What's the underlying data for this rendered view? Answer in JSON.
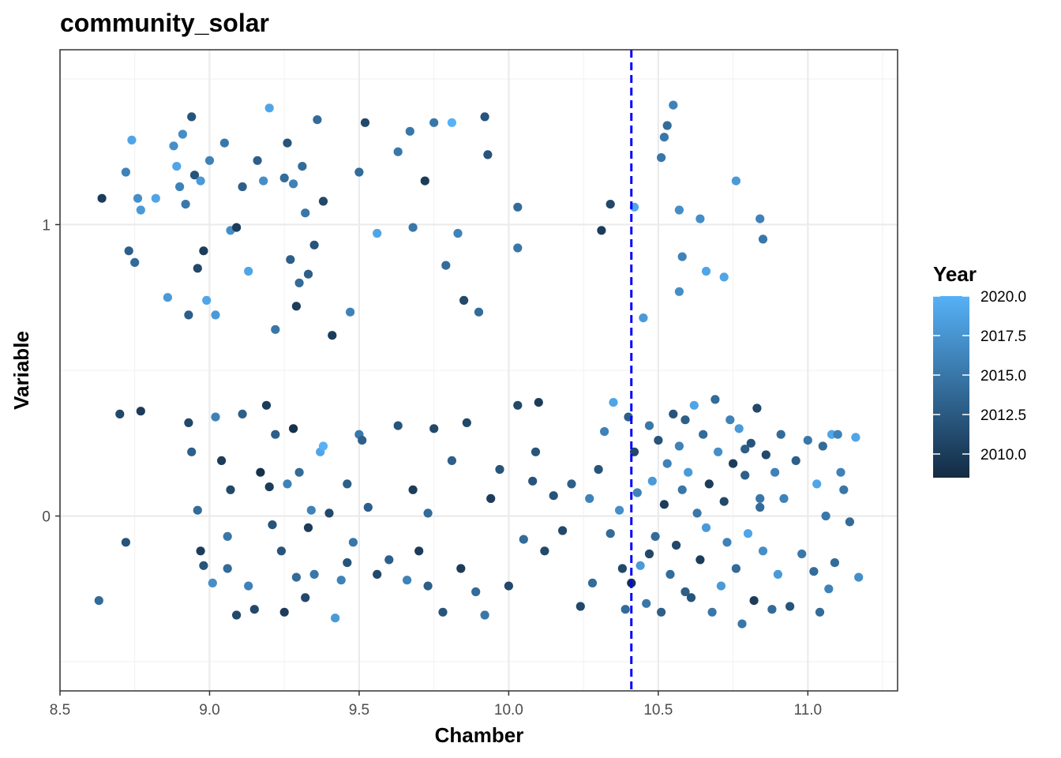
{
  "chart_data": {
    "type": "scatter",
    "title": "community_solar",
    "xlabel": "Chamber",
    "ylabel": "Variable",
    "xlim": [
      8.5,
      11.3
    ],
    "ylim": [
      -0.6,
      1.6
    ],
    "x_ticks": [
      8.5,
      9.0,
      9.5,
      10.0,
      10.5,
      11.0
    ],
    "x_tick_labels": [
      "8.5",
      "9.0",
      "9.5",
      "10.0",
      "10.5",
      "11.0"
    ],
    "y_ticks": [
      0,
      1
    ],
    "y_tick_labels": [
      "0",
      "1"
    ],
    "grid": true,
    "reference_line": {
      "x": 10.41,
      "color": "#0000ff",
      "style": "dashed"
    },
    "legend": {
      "title": "Year",
      "position": "right",
      "min": 2008.5,
      "max": 2020.0,
      "ticks": [
        2020.0,
        2017.5,
        2015.0,
        2012.5,
        2010.0
      ],
      "tick_labels": [
        "2020.0",
        "2017.5",
        "2015.0",
        "2012.5",
        "2010.0"
      ],
      "color_low": "#132b43",
      "color_high": "#56b1f7"
    },
    "groups": [
      {
        "y": 1,
        "points": [
          [
            8.64,
            1.09,
            2010
          ],
          [
            8.72,
            1.18,
            2016
          ],
          [
            8.73,
            0.91,
            2013
          ],
          [
            8.74,
            1.29,
            2019
          ],
          [
            8.75,
            0.87,
            2014
          ],
          [
            8.76,
            1.09,
            2017
          ],
          [
            8.77,
            1.05,
            2018
          ],
          [
            8.82,
            1.09,
            2019
          ],
          [
            8.86,
            0.75,
            2018
          ],
          [
            8.88,
            1.27,
            2017
          ],
          [
            8.89,
            1.2,
            2019
          ],
          [
            8.9,
            1.13,
            2016
          ],
          [
            8.91,
            1.31,
            2017
          ],
          [
            8.92,
            1.07,
            2015
          ],
          [
            8.93,
            0.69,
            2013
          ],
          [
            8.94,
            1.37,
            2012
          ],
          [
            8.95,
            1.17,
            2012
          ],
          [
            8.96,
            0.85,
            2011
          ],
          [
            8.97,
            1.15,
            2018
          ],
          [
            8.98,
            0.91,
            2010
          ],
          [
            8.99,
            0.74,
            2019
          ],
          [
            9.0,
            1.22,
            2016
          ],
          [
            9.02,
            0.69,
            2018
          ],
          [
            9.05,
            1.28,
            2015
          ],
          [
            9.07,
            0.98,
            2017
          ],
          [
            9.09,
            0.99,
            2010
          ],
          [
            9.11,
            1.13,
            2013
          ],
          [
            9.13,
            0.84,
            2019
          ],
          [
            9.16,
            1.22,
            2013
          ],
          [
            9.18,
            1.15,
            2017
          ],
          [
            9.2,
            1.4,
            2019
          ],
          [
            9.25,
            1.16,
            2014
          ],
          [
            9.26,
            1.28,
            2012
          ],
          [
            9.27,
            0.88,
            2013
          ],
          [
            9.28,
            1.14,
            2016
          ],
          [
            9.29,
            0.72,
            2010
          ],
          [
            9.3,
            0.8,
            2014
          ],
          [
            9.31,
            1.2,
            2014
          ],
          [
            9.32,
            1.04,
            2015
          ],
          [
            9.33,
            0.83,
            2013
          ],
          [
            9.35,
            0.93,
            2012
          ],
          [
            9.36,
            1.36,
            2014
          ],
          [
            9.38,
            1.08,
            2011
          ],
          [
            9.41,
            0.62,
            2010
          ],
          [
            9.47,
            0.7,
            2016
          ],
          [
            9.5,
            1.18,
            2014
          ],
          [
            9.52,
            1.35,
            2011
          ],
          [
            9.56,
            0.97,
            2019
          ],
          [
            9.63,
            1.25,
            2015
          ],
          [
            9.67,
            1.32,
            2015
          ],
          [
            9.68,
            0.99,
            2015
          ],
          [
            9.72,
            1.15,
            2010
          ],
          [
            9.75,
            1.35,
            2015
          ],
          [
            9.79,
            0.86,
            2014
          ],
          [
            9.81,
            1.35,
            2020
          ],
          [
            9.83,
            0.97,
            2016
          ],
          [
            9.85,
            0.74,
            2011
          ],
          [
            9.9,
            0.7,
            2014
          ],
          [
            9.92,
            1.37,
            2012
          ],
          [
            9.93,
            1.24,
            2012
          ],
          [
            10.03,
            1.06,
            2014
          ],
          [
            10.03,
            0.92,
            2015
          ],
          [
            10.31,
            0.98,
            2010
          ],
          [
            10.34,
            1.07,
            2011
          ],
          [
            10.42,
            1.06,
            2019
          ],
          [
            10.51,
            1.23,
            2015
          ],
          [
            10.52,
            1.3,
            2015
          ],
          [
            10.53,
            1.34,
            2014
          ],
          [
            10.55,
            1.41,
            2016
          ],
          [
            10.57,
            1.05,
            2017
          ],
          [
            10.58,
            0.89,
            2016
          ],
          [
            10.64,
            1.02,
            2017
          ],
          [
            10.66,
            0.84,
            2019
          ],
          [
            10.72,
            0.82,
            2019
          ],
          [
            10.76,
            1.15,
            2018
          ],
          [
            10.84,
            1.02,
            2016
          ],
          [
            10.85,
            0.95,
            2015
          ],
          [
            10.57,
            0.77,
            2017
          ],
          [
            10.45,
            0.68,
            2018
          ],
          [
            9.22,
            0.64,
            2015
          ]
        ]
      },
      {
        "y": 0,
        "points": [
          [
            8.63,
            -0.29,
            2014
          ],
          [
            8.7,
            0.35,
            2011
          ],
          [
            8.72,
            -0.09,
            2012
          ],
          [
            8.77,
            0.36,
            2010
          ],
          [
            8.93,
            0.32,
            2011
          ],
          [
            8.94,
            0.22,
            2013
          ],
          [
            8.96,
            0.02,
            2014
          ],
          [
            8.97,
            -0.12,
            2010
          ],
          [
            8.98,
            -0.17,
            2012
          ],
          [
            9.01,
            -0.23,
            2017
          ],
          [
            9.02,
            0.34,
            2016
          ],
          [
            9.04,
            0.19,
            2010
          ],
          [
            9.06,
            -0.07,
            2015
          ],
          [
            9.07,
            0.09,
            2011
          ],
          [
            9.09,
            -0.34,
            2011
          ],
          [
            9.11,
            0.35,
            2013
          ],
          [
            9.13,
            -0.24,
            2016
          ],
          [
            9.15,
            -0.32,
            2011
          ],
          [
            9.17,
            0.15,
            2009
          ],
          [
            9.19,
            0.38,
            2010
          ],
          [
            9.21,
            -0.03,
            2012
          ],
          [
            9.22,
            0.28,
            2013
          ],
          [
            9.24,
            -0.12,
            2012
          ],
          [
            9.25,
            -0.33,
            2010
          ],
          [
            9.26,
            0.11,
            2016
          ],
          [
            9.28,
            0.3,
            2009
          ],
          [
            9.29,
            -0.21,
            2014
          ],
          [
            9.3,
            0.15,
            2014
          ],
          [
            9.32,
            -0.28,
            2011
          ],
          [
            9.33,
            -0.04,
            2010
          ],
          [
            9.34,
            0.02,
            2016
          ],
          [
            9.35,
            -0.2,
            2015
          ],
          [
            9.37,
            0.22,
            2019
          ],
          [
            9.38,
            0.24,
            2020
          ],
          [
            9.4,
            0.01,
            2011
          ],
          [
            9.42,
            -0.35,
            2018
          ],
          [
            9.44,
            -0.22,
            2016
          ],
          [
            9.46,
            0.11,
            2013
          ],
          [
            9.48,
            -0.09,
            2015
          ],
          [
            9.5,
            0.28,
            2015
          ],
          [
            9.51,
            0.26,
            2013
          ],
          [
            9.53,
            0.03,
            2013
          ],
          [
            9.56,
            -0.2,
            2011
          ],
          [
            9.6,
            -0.15,
            2013
          ],
          [
            9.63,
            0.31,
            2012
          ],
          [
            9.66,
            -0.22,
            2016
          ],
          [
            9.68,
            0.09,
            2010
          ],
          [
            9.7,
            -0.12,
            2010
          ],
          [
            9.73,
            0.01,
            2014
          ],
          [
            9.75,
            0.3,
            2011
          ],
          [
            9.78,
            -0.33,
            2012
          ],
          [
            9.81,
            0.19,
            2013
          ],
          [
            9.84,
            -0.18,
            2010
          ],
          [
            9.86,
            0.32,
            2011
          ],
          [
            9.89,
            -0.26,
            2014
          ],
          [
            9.92,
            -0.34,
            2015
          ],
          [
            9.94,
            0.06,
            2010
          ],
          [
            9.97,
            0.16,
            2012
          ],
          [
            10.0,
            -0.24,
            2011
          ],
          [
            10.03,
            0.38,
            2011
          ],
          [
            10.05,
            -0.08,
            2014
          ],
          [
            10.08,
            0.12,
            2012
          ],
          [
            10.1,
            0.39,
            2010
          ],
          [
            10.12,
            -0.12,
            2011
          ],
          [
            10.15,
            0.07,
            2012
          ],
          [
            10.18,
            -0.05,
            2011
          ],
          [
            10.21,
            0.11,
            2013
          ],
          [
            10.24,
            -0.31,
            2011
          ],
          [
            10.27,
            0.06,
            2016
          ],
          [
            10.3,
            0.16,
            2012
          ],
          [
            10.32,
            0.29,
            2016
          ],
          [
            10.34,
            -0.06,
            2014
          ],
          [
            10.35,
            0.39,
            2019
          ],
          [
            10.37,
            0.02,
            2017
          ],
          [
            10.38,
            -0.18,
            2011
          ],
          [
            10.39,
            -0.32,
            2014
          ],
          [
            10.4,
            0.34,
            2013
          ],
          [
            10.41,
            -0.23,
            2009
          ],
          [
            10.42,
            0.22,
            2011
          ],
          [
            10.43,
            0.08,
            2016
          ],
          [
            10.44,
            -0.17,
            2018
          ],
          [
            10.46,
            -0.3,
            2015
          ],
          [
            10.47,
            0.31,
            2015
          ],
          [
            10.48,
            0.12,
            2018
          ],
          [
            10.49,
            -0.07,
            2014
          ],
          [
            10.5,
            0.26,
            2012
          ],
          [
            10.51,
            -0.33,
            2013
          ],
          [
            10.52,
            0.04,
            2010
          ],
          [
            10.53,
            0.18,
            2016
          ],
          [
            10.54,
            -0.2,
            2014
          ],
          [
            10.55,
            0.35,
            2012
          ],
          [
            10.56,
            -0.1,
            2011
          ],
          [
            10.57,
            0.24,
            2016
          ],
          [
            10.58,
            0.09,
            2015
          ],
          [
            10.59,
            -0.26,
            2013
          ],
          [
            10.6,
            0.15,
            2018
          ],
          [
            10.61,
            -0.28,
            2012
          ],
          [
            10.62,
            0.38,
            2019
          ],
          [
            10.63,
            0.01,
            2015
          ],
          [
            10.64,
            -0.15,
            2010
          ],
          [
            10.65,
            0.28,
            2014
          ],
          [
            10.66,
            -0.04,
            2018
          ],
          [
            10.67,
            0.11,
            2010
          ],
          [
            10.68,
            -0.33,
            2015
          ],
          [
            10.69,
            0.4,
            2014
          ],
          [
            10.7,
            0.22,
            2017
          ],
          [
            10.71,
            -0.24,
            2018
          ],
          [
            10.72,
            0.05,
            2011
          ],
          [
            10.73,
            -0.09,
            2016
          ],
          [
            10.74,
            0.33,
            2016
          ],
          [
            10.75,
            0.18,
            2010
          ],
          [
            10.76,
            -0.18,
            2014
          ],
          [
            10.77,
            0.3,
            2018
          ],
          [
            10.78,
            -0.37,
            2015
          ],
          [
            10.79,
            0.14,
            2013
          ],
          [
            10.8,
            -0.06,
            2019
          ],
          [
            10.81,
            0.25,
            2012
          ],
          [
            10.82,
            -0.29,
            2010
          ],
          [
            10.83,
            0.37,
            2011
          ],
          [
            10.84,
            0.06,
            2015
          ],
          [
            10.85,
            -0.12,
            2017
          ],
          [
            10.86,
            0.21,
            2011
          ],
          [
            10.88,
            -0.32,
            2014
          ],
          [
            10.89,
            0.15,
            2016
          ],
          [
            10.9,
            -0.2,
            2018
          ],
          [
            10.91,
            0.28,
            2014
          ],
          [
            10.92,
            0.06,
            2016
          ],
          [
            10.94,
            -0.31,
            2012
          ],
          [
            10.96,
            0.19,
            2013
          ],
          [
            10.98,
            -0.13,
            2015
          ],
          [
            11.0,
            0.26,
            2015
          ],
          [
            11.02,
            -0.19,
            2014
          ],
          [
            11.03,
            0.11,
            2019
          ],
          [
            11.04,
            -0.33,
            2014
          ],
          [
            11.05,
            0.24,
            2014
          ],
          [
            11.06,
            0.0,
            2015
          ],
          [
            11.07,
            -0.25,
            2016
          ],
          [
            11.08,
            0.28,
            2019
          ],
          [
            11.09,
            -0.16,
            2014
          ],
          [
            11.1,
            0.28,
            2016
          ],
          [
            11.11,
            0.15,
            2016
          ],
          [
            11.12,
            0.09,
            2015
          ],
          [
            11.14,
            -0.02,
            2014
          ],
          [
            11.16,
            0.27,
            2019
          ],
          [
            11.17,
            -0.21,
            2017
          ],
          [
            9.06,
            -0.18,
            2014
          ],
          [
            9.2,
            0.1,
            2010
          ],
          [
            9.46,
            -0.16,
            2012
          ],
          [
            9.73,
            -0.24,
            2013
          ],
          [
            10.09,
            0.22,
            2012
          ],
          [
            10.28,
            -0.23,
            2014
          ],
          [
            10.59,
            0.33,
            2013
          ],
          [
            10.84,
            0.03,
            2014
          ],
          [
            10.47,
            -0.13,
            2011
          ],
          [
            10.79,
            0.23,
            2013
          ]
        ]
      }
    ]
  }
}
